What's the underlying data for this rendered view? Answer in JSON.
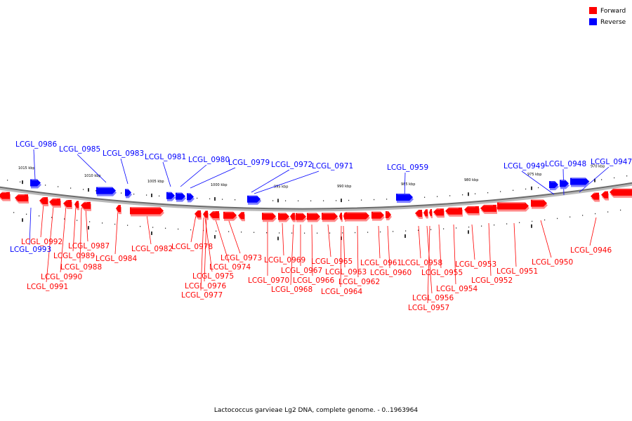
{
  "legend": {
    "forward": {
      "label": "Forward",
      "color": "#ff0000"
    },
    "reverse": {
      "label": "Reverse",
      "color": "#0000ff"
    }
  },
  "caption": "Lactococcus garvieae Lg2 DNA, complete genome. - 0..1963964",
  "ticks": [
    "1015 kbp",
    "1010 kbp",
    "1005 kbp",
    "1000 kbp",
    "995 kbp",
    "990 kbp",
    "985 kbp",
    "980 kbp",
    "975 kbp",
    "970 kbp"
  ],
  "genes_top": [
    "LCGL_0986",
    "LCGL_0985",
    "LCGL_0983",
    "LCGL_0981",
    "LCGL_0980",
    "LCGL_0979",
    "LCGL_0972",
    "LCGL_0971",
    "LCGL_0959",
    "LCGL_0949",
    "LCGL_0948",
    "LCGL_0947"
  ],
  "genes_bottom": [
    "LCGL_0992",
    "LCGL_0993",
    "LCGL_0991",
    "LCGL_0990",
    "LCGL_0989",
    "LCGL_0987",
    "LCGL_0988",
    "LCGL_0984",
    "LCGL_0982",
    "LCGL_0978",
    "LCGL_0975",
    "LCGL_0976",
    "LCGL_0977",
    "LCGL_0974",
    "LCGL_0973",
    "LCGL_0970",
    "LCGL_0969",
    "LCGL_0968",
    "LCGL_0967",
    "LCGL_0966",
    "LCGL_0965",
    "LCGL_0964",
    "LCGL_0963",
    "LCGL_0962",
    "LCGL_0961",
    "LCGL_0960",
    "LCGL_0958",
    "LCGL_0957",
    "LCGL_0956",
    "LCGL_0955",
    "LCGL_0954",
    "LCGL_0953",
    "LCGL_0952",
    "LCGL_0951",
    "LCGL_0950",
    "LCGL_0946"
  ]
}
